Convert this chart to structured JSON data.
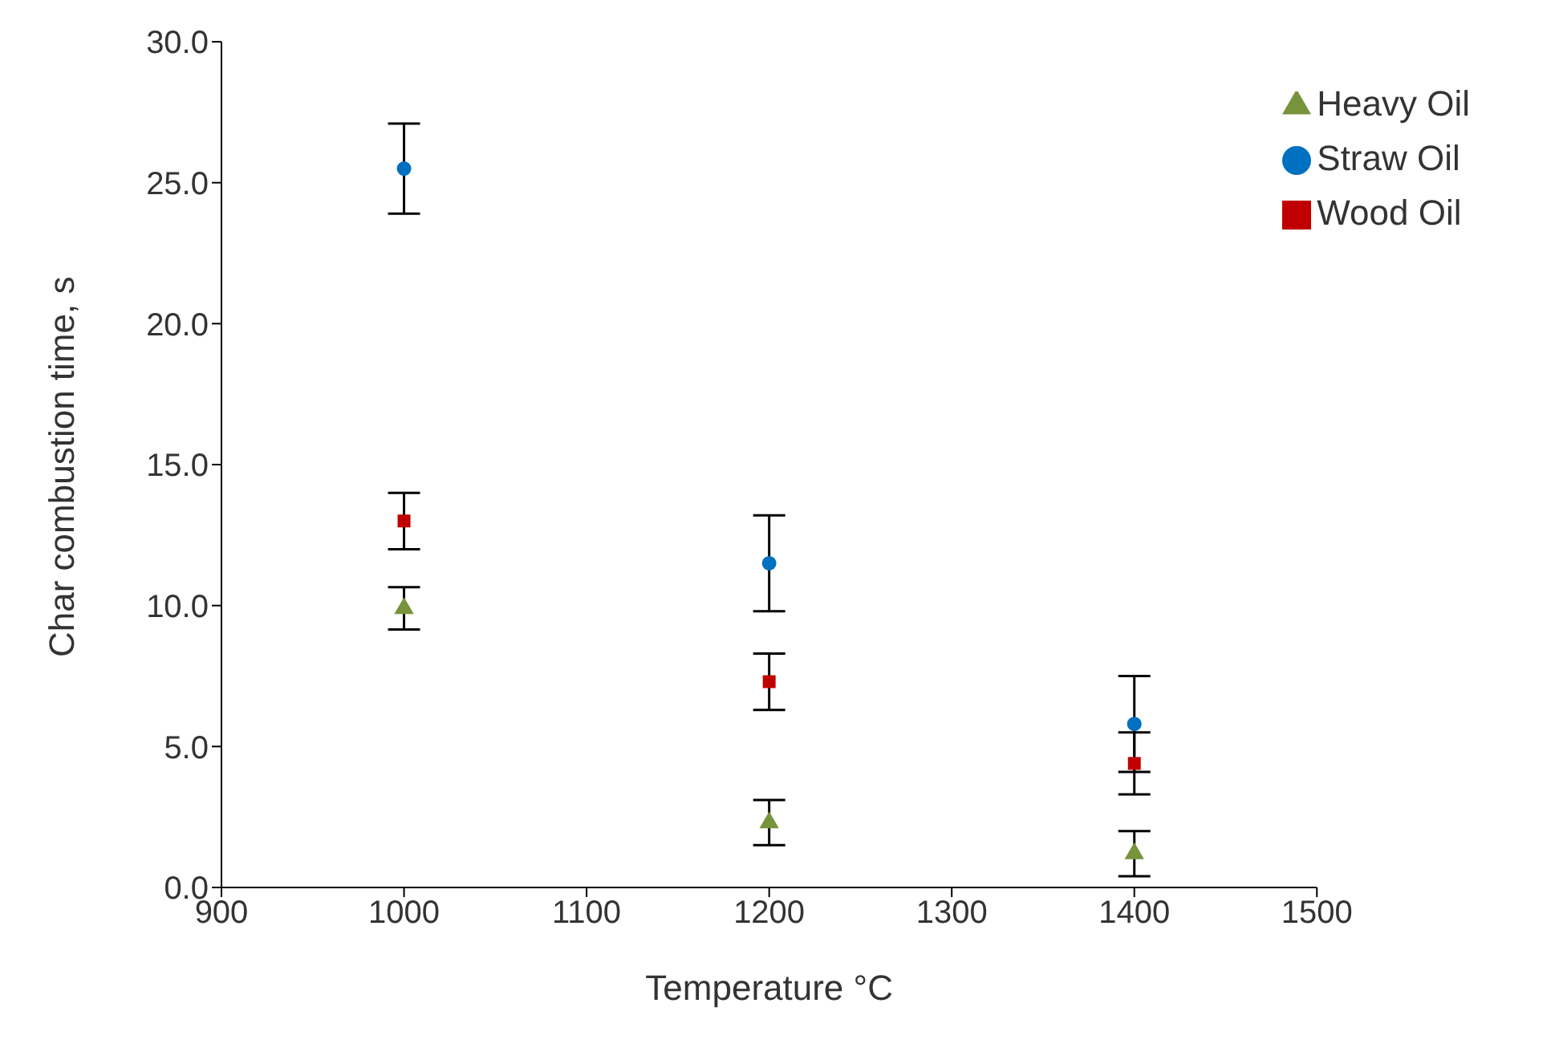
{
  "chart_data": {
    "type": "scatter",
    "xlabel": "Temperature °C",
    "ylabel": "Char combustion time, s",
    "x": [
      1000,
      1200,
      1400
    ],
    "series": [
      {
        "name": "Straw Oil",
        "color": "#0070c0",
        "marker": "circle",
        "values": [
          25.5,
          11.5,
          5.8
        ],
        "errors": [
          1.6,
          1.7,
          1.7
        ]
      },
      {
        "name": "Wood Oil",
        "color": "#c00000",
        "marker": "square",
        "values": [
          13.0,
          7.3,
          4.4
        ],
        "errors": [
          1.0,
          1.0,
          1.1
        ]
      },
      {
        "name": "Heavy Oil",
        "color": "#77933c",
        "marker": "triangle",
        "values": [
          9.9,
          2.3,
          1.2
        ],
        "errors": [
          0.75,
          0.8,
          0.8
        ]
      }
    ],
    "xlim": [
      900,
      1500
    ],
    "xticks": [
      900,
      1000,
      1100,
      1200,
      1300,
      1400,
      1500
    ],
    "ylim": [
      0,
      30
    ],
    "yticks": [
      {
        "value": 0,
        "label": "0.0"
      },
      {
        "value": 5,
        "label": "5.0"
      },
      {
        "value": 10,
        "label": "10.0"
      },
      {
        "value": 15,
        "label": "15.0"
      },
      {
        "value": 20,
        "label": "20.0"
      },
      {
        "value": 25,
        "label": "25.0"
      },
      {
        "value": 30,
        "label": "30.0"
      }
    ],
    "grid": false,
    "legend": "top right"
  }
}
